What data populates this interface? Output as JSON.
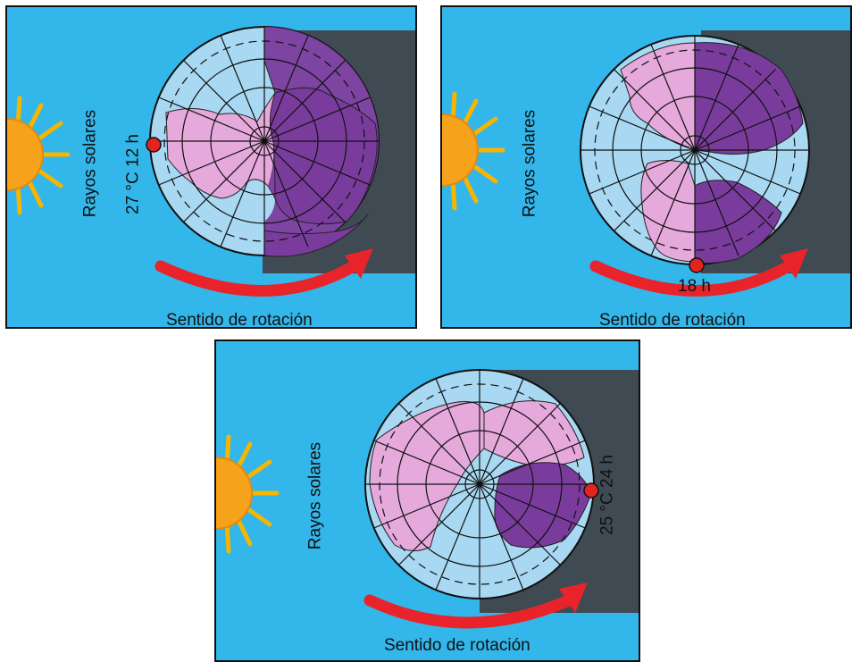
{
  "panels": [
    {
      "rays_label": "Rayos solares",
      "reading": "27 °C  12 h",
      "rotation_label": "Sentido de rotación"
    },
    {
      "rays_label": "Rayos solares",
      "reading": "18 h",
      "rotation_label": "Sentido de rotación"
    },
    {
      "rays_label": "Rayos solares",
      "reading": "25 °C  24 h",
      "rotation_label": "Sentido de rotación"
    }
  ],
  "colors": {
    "sky": "#33b6ea",
    "night": "#3f4a52",
    "ocean": "#a8d8f2",
    "land_day": "#e6a9dc",
    "land_night": "#7a3c9c",
    "arrow": "#e8242a",
    "marker": "#e3231d",
    "sun": "#f7a21b"
  }
}
